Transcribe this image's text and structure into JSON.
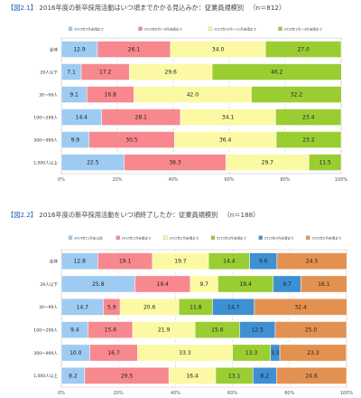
{
  "chart_data": [
    {
      "type": "bar",
      "title_tag": "【図2.1】",
      "title": "2016年度の新卒採用活動はいつ頃までかかる見込みか：従業員規模別",
      "n_label": "（n＝812）",
      "legend": [
        "2015年7月末頃まで",
        "2015年8月〜9月末頃まで",
        "2015年10月〜12月末頃まで",
        "2016年1月〜3月末頃まで"
      ],
      "colors": [
        "#9ecbf1",
        "#f7888e",
        "#fbf9a3",
        "#9acd32"
      ],
      "categories": [
        "全体",
        "29人以下",
        "30〜99人",
        "100〜299人",
        "300〜999人",
        "1,000人以上"
      ],
      "series": [
        {
          "name": "2015年7月末頃まで",
          "values": [
            12.9,
            7.1,
            9.1,
            14.4,
            9.9,
            22.5
          ]
        },
        {
          "name": "2015年8月〜9月末頃まで",
          "values": [
            26.1,
            17.2,
            16.8,
            28.1,
            30.5,
            36.3
          ]
        },
        {
          "name": "2015年10月〜12月末頃まで",
          "values": [
            34.0,
            29.6,
            42.0,
            34.1,
            36.4,
            29.7
          ]
        },
        {
          "name": "2016年1月〜3月末頃まで",
          "values": [
            27.0,
            46.2,
            32.2,
            23.4,
            23.2,
            11.5
          ]
        }
      ],
      "xticks": [
        "0%",
        "20%",
        "40%",
        "60%",
        "80%",
        "100%"
      ],
      "xlim": [
        0,
        100
      ]
    },
    {
      "type": "bar",
      "title_tag": "【図2.2】",
      "title": "2016年度の新卒採用活動をいつ頃終了したか：従業員規模別",
      "n_label": "（n＝188）",
      "legend": [
        "2014年11月末以前",
        "2015年1月末頃まで",
        "2015年2月末頃まで",
        "2015年3月末頃まで",
        "2015年4月末頃まで",
        "2015年5月末頃まで"
      ],
      "colors": [
        "#9ecbf1",
        "#f7888e",
        "#fbf9a3",
        "#9acd32",
        "#3f8fd3",
        "#e39150"
      ],
      "categories": [
        "全体",
        "29人以下",
        "30〜99人",
        "100〜299人",
        "300〜999人",
        "1,000人以上"
      ],
      "series": [
        {
          "name": "2014年11月末以前",
          "values": [
            12.8,
            25.8,
            14.7,
            9.4,
            10.0,
            8.2
          ]
        },
        {
          "name": "2015年1月末頃まで",
          "values": [
            19.1,
            19.4,
            5.9,
            15.6,
            16.7,
            29.5
          ]
        },
        {
          "name": "2015年2月末頃まで",
          "values": [
            19.7,
            9.7,
            20.6,
            21.9,
            33.3,
            16.4
          ]
        },
        {
          "name": "2015年3月末頃まで",
          "values": [
            14.4,
            19.4,
            11.8,
            15.6,
            13.3,
            13.1
          ]
        },
        {
          "name": "2015年4月末頃まで",
          "values": [
            9.6,
            9.7,
            14.7,
            12.5,
            3.3,
            8.2
          ]
        },
        {
          "name": "2015年5月末頃まで",
          "values": [
            24.5,
            16.1,
            32.4,
            25.0,
            23.3,
            24.6
          ]
        }
      ],
      "xticks": [
        "0%",
        "20%",
        "40%",
        "60%",
        "80%",
        "100%"
      ],
      "xlim": [
        0,
        100
      ]
    }
  ]
}
